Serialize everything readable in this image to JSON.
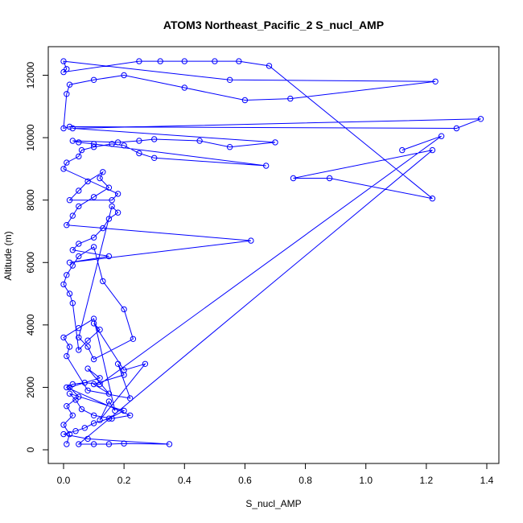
{
  "chart_data": {
    "type": "line",
    "title": "ATOM3 Northeast_Pacific_2 S_nucl_AMP",
    "xlabel": "S_nucl_AMP",
    "ylabel": "Altitude (m)",
    "xlim": [
      0,
      1.4
    ],
    "ylim": [
      0,
      12400
    ],
    "x_ticks": [
      "0.0",
      "0.2",
      "0.4",
      "0.6",
      "0.8",
      "1.0",
      "1.2",
      "1.4"
    ],
    "y_ticks": [
      "0",
      "2000",
      "4000",
      "6000",
      "8000",
      "10000",
      "12000"
    ],
    "x_tick_values": [
      0,
      0.2,
      0.4,
      0.6,
      0.8,
      1.0,
      1.2,
      1.4
    ],
    "y_tick_values": [
      0,
      2000,
      4000,
      6000,
      8000,
      10000,
      12000
    ],
    "grid": false,
    "legend": "none",
    "marker": "open-circle",
    "series": [
      {
        "color": "#0000ff",
        "x": [
          0.01,
          0.02,
          0.0,
          0.03,
          0.01,
          0.05,
          0.02,
          0.12,
          0.08,
          0.15,
          0.1,
          0.2,
          0.18,
          0.22,
          0.08,
          0.01,
          0.02,
          0.0,
          0.05,
          0.1,
          0.17,
          0.15,
          0.12,
          0.27,
          0.2,
          0.1,
          0.12,
          0.08,
          0.05,
          0.03,
          0.02,
          0.0,
          0.01,
          0.03,
          0.05,
          0.1,
          0.13,
          0.2,
          0.23,
          0.1,
          0.08,
          0.05,
          0.16,
          0.18,
          0.15,
          0.13,
          0.1,
          0.05,
          0.03,
          0.15,
          0.02,
          0.62,
          0.01,
          0.03,
          0.05,
          0.1,
          0.15,
          0.12,
          0.13,
          0.08,
          0.05,
          0.02,
          0.16,
          0.18,
          0.0,
          0.01,
          0.05,
          0.06,
          0.1,
          0.16,
          0.2,
          0.25,
          0.3,
          0.67,
          0.1,
          0.05,
          0.03,
          0.18,
          0.25,
          0.3,
          0.45,
          0.55,
          0.7,
          0.03,
          1.38,
          1.3,
          0.02,
          0.0,
          0.01,
          0.02,
          0.1,
          0.2,
          0.4,
          0.6,
          0.75,
          1.23,
          0.55,
          0.0,
          0.01,
          0.0,
          0.25,
          0.32,
          0.4,
          0.5,
          0.58,
          0.68,
          1.22,
          0.88,
          0.76,
          1.22,
          0.05,
          0.1,
          0.15,
          0.2,
          0.35,
          0.08,
          0.0,
          0.04,
          0.07,
          0.1,
          0.15,
          0.2,
          0.02,
          0.04,
          0.06,
          0.1,
          0.16,
          0.22,
          0.01,
          0.03,
          0.07,
          0.12,
          1.25,
          1.12
        ],
        "y": [
          180,
          500,
          800,
          1100,
          1400,
          1700,
          2000,
          2300,
          2600,
          1800,
          2100,
          2400,
          2750,
          1650,
          1900,
          3000,
          3300,
          3600,
          3900,
          4200,
          1250,
          1550,
          950,
          2750,
          2550,
          4050,
          3850,
          3500,
          3200,
          4700,
          5000,
          5300,
          5600,
          5900,
          6200,
          6500,
          5400,
          4500,
          3550,
          2900,
          3300,
          3600,
          7800,
          7600,
          7400,
          7100,
          6800,
          6600,
          6400,
          6200,
          6000,
          6700,
          7200,
          7500,
          7800,
          8100,
          8400,
          8700,
          8900,
          8600,
          8300,
          8000,
          8000,
          8200,
          9000,
          9200,
          9400,
          9600,
          9700,
          9800,
          9750,
          9500,
          9350,
          9100,
          9800,
          9850,
          9900,
          9850,
          9900,
          9950,
          9900,
          9700,
          9850,
          10300,
          10600,
          10300,
          10350,
          10300,
          11400,
          11700,
          11850,
          12000,
          11600,
          11200,
          11250,
          11800,
          11850,
          12450,
          12200,
          12100,
          12450,
          12450,
          12450,
          12450,
          12450,
          12300,
          8050,
          8700,
          8700,
          9600,
          180,
          180,
          180,
          200,
          180,
          350,
          500,
          600,
          700,
          850,
          1000,
          1250,
          1800,
          1600,
          1300,
          1100,
          1000,
          1100,
          2000,
          2100,
          2150,
          2100,
          10050,
          9600
        ]
      }
    ]
  }
}
